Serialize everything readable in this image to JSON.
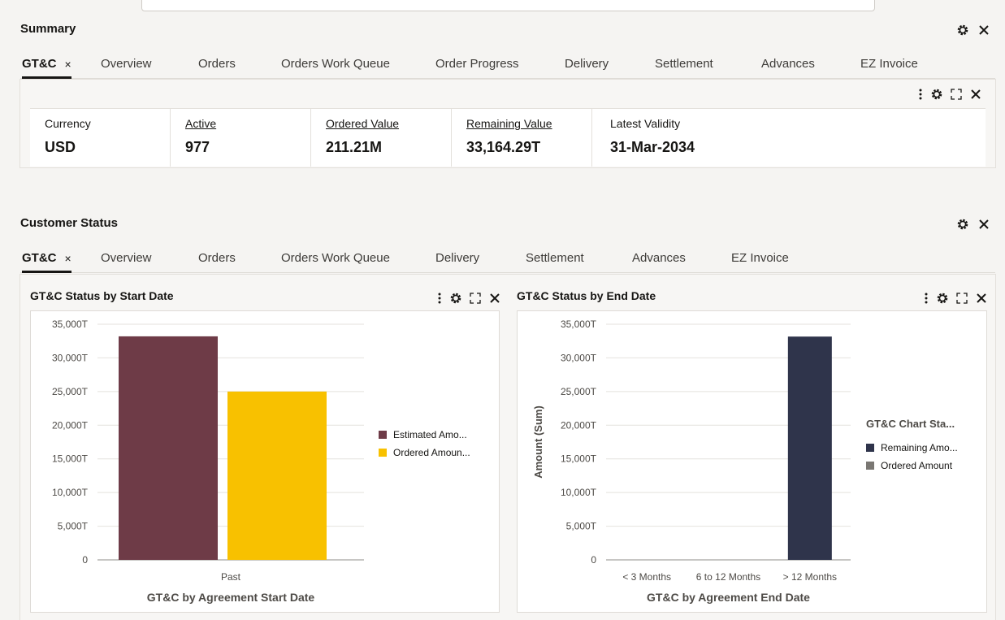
{
  "summary": {
    "title": "Summary",
    "tabs": [
      "GT&C",
      "Overview",
      "Orders",
      "Orders Work Queue",
      "Order Progress",
      "Delivery",
      "Settlement",
      "Advances",
      "EZ Invoice"
    ],
    "active_tab_close": "×",
    "kpis": [
      {
        "label": "Currency",
        "value": "USD"
      },
      {
        "label": "Active",
        "value": "977"
      },
      {
        "label": "Ordered Value",
        "value": "211.21M"
      },
      {
        "label": "Remaining Value",
        "value": "33,164.29T"
      },
      {
        "label": "Latest Validity",
        "value": "31-Mar-2034"
      }
    ]
  },
  "customer_status": {
    "title": "Customer Status",
    "tabs": [
      "GT&C",
      "Overview",
      "Orders",
      "Orders Work Queue",
      "Delivery",
      "Settlement",
      "Advances",
      "EZ Invoice"
    ],
    "active_tab_close": "×"
  },
  "icons": {
    "settings": "gear-icon",
    "close": "close-icon",
    "more": "more-vertical-icon",
    "expand": "expand-icon"
  },
  "colors": {
    "estimated": "#6e3b47",
    "ordered_start": "#f8c100",
    "remaining": "#2f344b",
    "ordered_end": "#7a7773"
  },
  "chart_data": [
    {
      "type": "bar",
      "title": "GT&C Status by Start Date",
      "xlabel": "GT&C by Agreement Start Date",
      "ylabel": "",
      "categories": [
        "Past"
      ],
      "series": [
        {
          "name": "Estimated Amo...",
          "values": [
            33200
          ]
        },
        {
          "name": "Ordered Amoun...",
          "values": [
            25000
          ]
        }
      ],
      "y_ticks": [
        "35,000T",
        "30,000T",
        "25,000T",
        "20,000T",
        "15,000T",
        "10,000T",
        "5,000T",
        "0"
      ],
      "ylim": [
        0,
        35000
      ],
      "grid": true,
      "legend": "right"
    },
    {
      "type": "bar",
      "title": "GT&C Status by End Date",
      "xlabel": "GT&C by Agreement End Date",
      "ylabel": "Amount (Sum)",
      "legend_title": "GT&C Chart Sta...",
      "categories": [
        "< 3 Months",
        "6 to 12 Months",
        "> 12 Months"
      ],
      "series": [
        {
          "name": "Remaining Amo...",
          "values": [
            0,
            0,
            33164
          ]
        },
        {
          "name": "Ordered Amount",
          "values": [
            0,
            0,
            0
          ]
        }
      ],
      "y_ticks": [
        "35,000T",
        "30,000T",
        "25,000T",
        "20,000T",
        "15,000T",
        "10,000T",
        "5,000T",
        "0"
      ],
      "ylim": [
        0,
        35000
      ],
      "grid": true,
      "legend": "right"
    }
  ]
}
